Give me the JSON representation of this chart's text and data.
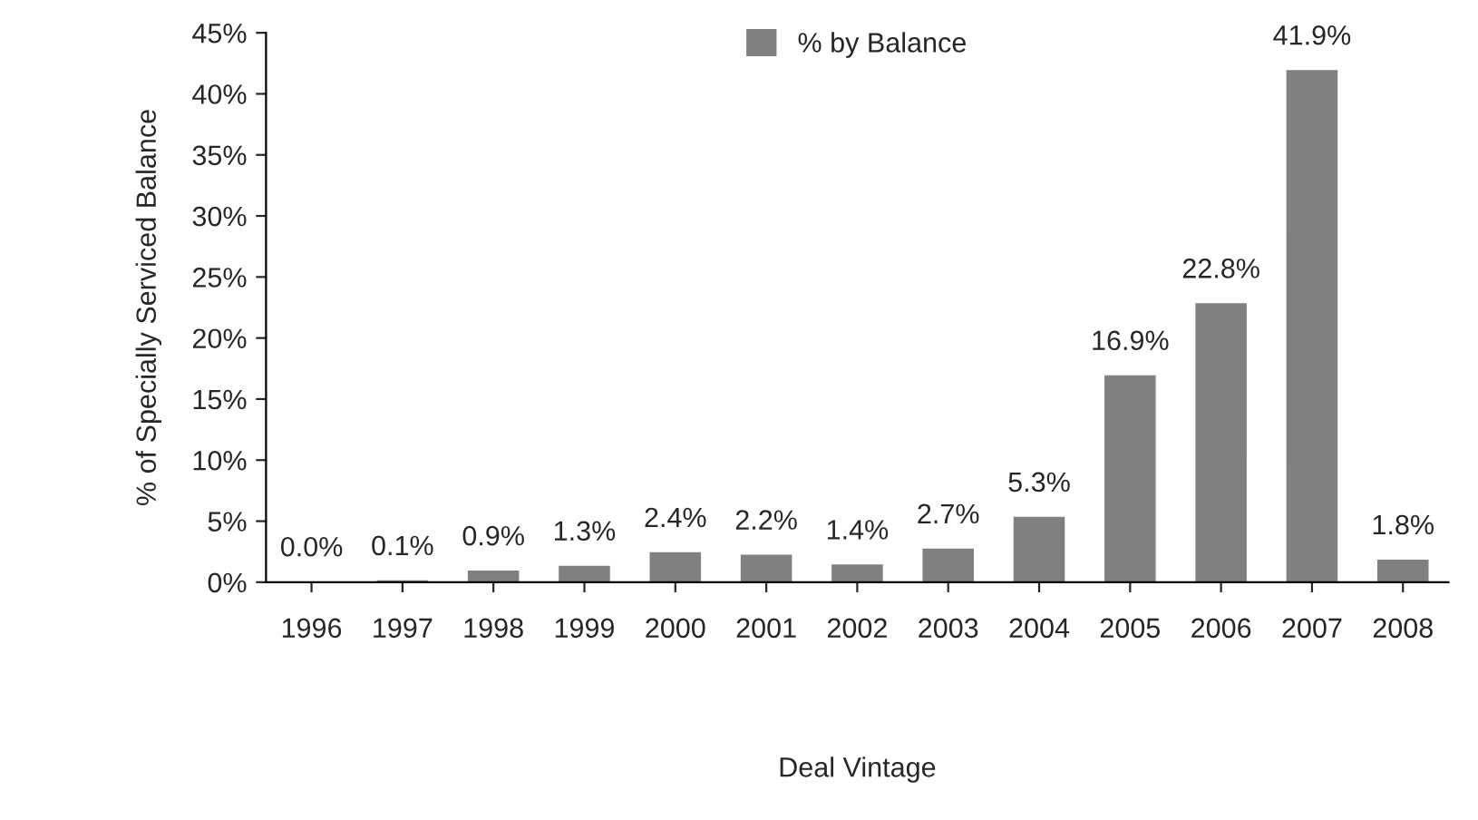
{
  "chart_data": {
    "type": "bar",
    "xlabel": "Deal Vintage",
    "ylabel": "% of Specially Serviced Balance",
    "categories": [
      "1996",
      "1997",
      "1998",
      "1999",
      "2000",
      "2001",
      "2002",
      "2003",
      "2004",
      "2005",
      "2006",
      "2007",
      "2008"
    ],
    "series": [
      {
        "name": "% by Balance",
        "color": "#808080",
        "values": [
          0.0,
          0.1,
          0.9,
          1.3,
          2.4,
          2.2,
          1.4,
          2.7,
          5.3,
          16.9,
          22.8,
          41.9,
          1.8
        ],
        "value_labels": [
          "0.0%",
          "0.1%",
          "0.9%",
          "1.3%",
          "2.4%",
          "2.2%",
          "1.4%",
          "2.7%",
          "5.3%",
          "16.9%",
          "22.8%",
          "41.9%",
          "1.8%"
        ]
      }
    ],
    "ylim": [
      0,
      45
    ],
    "yticks": [
      {
        "value": 0,
        "label": "0%"
      },
      {
        "value": 5,
        "label": "5%"
      },
      {
        "value": 10,
        "label": "10%"
      },
      {
        "value": 15,
        "label": "15%"
      },
      {
        "value": 20,
        "label": "20%"
      },
      {
        "value": 25,
        "label": "25%"
      },
      {
        "value": 30,
        "label": "30%"
      },
      {
        "value": 35,
        "label": "35%"
      },
      {
        "value": 40,
        "label": "40%"
      },
      {
        "value": 45,
        "label": "45%"
      }
    ],
    "grid": false,
    "legend": "top"
  }
}
